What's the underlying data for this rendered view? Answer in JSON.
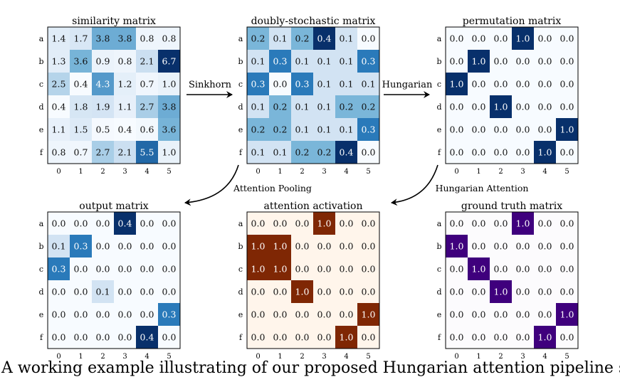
{
  "row_labels": [
    "a",
    "b",
    "c",
    "d",
    "e",
    "f"
  ],
  "col_labels": [
    "0",
    "1",
    "2",
    "3",
    "4",
    "5"
  ],
  "colors": {
    "blue_scale_low": "#f7fbff",
    "blue_scale_high": "#08306b",
    "orange_low": "#fff5eb",
    "orange_high": "#7f2704",
    "purple_low": "#fcfbfd",
    "purple_high": "#3f007d"
  },
  "matrices": [
    {
      "id": "similarity",
      "title": "similarity matrix",
      "scale": "blue",
      "values": [
        [
          "1.4",
          "1.7",
          "3.8",
          "3.8",
          "0.8",
          "0.8"
        ],
        [
          "1.3",
          "3.6",
          "0.9",
          "0.8",
          "2.1",
          "6.7"
        ],
        [
          "2.5",
          "0.4",
          "4.3",
          "1.2",
          "0.7",
          "1.0"
        ],
        [
          "0.4",
          "1.8",
          "1.9",
          "1.1",
          "2.7",
          "3.8"
        ],
        [
          "1.1",
          "1.5",
          "0.5",
          "0.4",
          "0.6",
          "3.6"
        ],
        [
          "0.8",
          "0.7",
          "2.7",
          "2.1",
          "5.5",
          "1.0"
        ]
      ]
    },
    {
      "id": "doubly-stochastic",
      "title": "doubly-stochastic matrix",
      "scale": "blue",
      "values": [
        [
          "0.2",
          "0.1",
          "0.2",
          "0.4",
          "0.1",
          "0.0"
        ],
        [
          "0.1",
          "0.3",
          "0.1",
          "0.1",
          "0.1",
          "0.3"
        ],
        [
          "0.3",
          "0.0",
          "0.3",
          "0.1",
          "0.1",
          "0.1"
        ],
        [
          "0.1",
          "0.2",
          "0.1",
          "0.1",
          "0.2",
          "0.2"
        ],
        [
          "0.2",
          "0.2",
          "0.1",
          "0.1",
          "0.1",
          "0.3"
        ],
        [
          "0.1",
          "0.1",
          "0.2",
          "0.2",
          "0.4",
          "0.0"
        ]
      ]
    },
    {
      "id": "permutation",
      "title": "permutation matrix",
      "scale": "blue",
      "values": [
        [
          "0.0",
          "0.0",
          "0.0",
          "1.0",
          "0.0",
          "0.0"
        ],
        [
          "0.0",
          "1.0",
          "0.0",
          "0.0",
          "0.0",
          "0.0"
        ],
        [
          "1.0",
          "0.0",
          "0.0",
          "0.0",
          "0.0",
          "0.0"
        ],
        [
          "0.0",
          "0.0",
          "1.0",
          "0.0",
          "0.0",
          "0.0"
        ],
        [
          "0.0",
          "0.0",
          "0.0",
          "0.0",
          "0.0",
          "1.0"
        ],
        [
          "0.0",
          "0.0",
          "0.0",
          "0.0",
          "1.0",
          "0.0"
        ]
      ]
    },
    {
      "id": "output",
      "title": "output matrix",
      "scale": "blue",
      "values": [
        [
          "0.0",
          "0.0",
          "0.0",
          "0.4",
          "0.0",
          "0.0"
        ],
        [
          "0.1",
          "0.3",
          "0.0",
          "0.0",
          "0.0",
          "0.0"
        ],
        [
          "0.3",
          "0.0",
          "0.0",
          "0.0",
          "0.0",
          "0.0"
        ],
        [
          "0.0",
          "0.0",
          "0.1",
          "0.0",
          "0.0",
          "0.0"
        ],
        [
          "0.0",
          "0.0",
          "0.0",
          "0.0",
          "0.0",
          "0.3"
        ],
        [
          "0.0",
          "0.0",
          "0.0",
          "0.0",
          "0.4",
          "0.0"
        ]
      ]
    },
    {
      "id": "attention-activation",
      "title": "attention activation",
      "scale": "orange",
      "values": [
        [
          "0.0",
          "0.0",
          "0.0",
          "1.0",
          "0.0",
          "0.0"
        ],
        [
          "1.0",
          "1.0",
          "0.0",
          "0.0",
          "0.0",
          "0.0"
        ],
        [
          "1.0",
          "1.0",
          "0.0",
          "0.0",
          "0.0",
          "0.0"
        ],
        [
          "0.0",
          "0.0",
          "1.0",
          "0.0",
          "0.0",
          "0.0"
        ],
        [
          "0.0",
          "0.0",
          "0.0",
          "0.0",
          "0.0",
          "1.0"
        ],
        [
          "0.0",
          "0.0",
          "0.0",
          "0.0",
          "1.0",
          "0.0"
        ]
      ]
    },
    {
      "id": "ground-truth",
      "title": "ground truth matrix",
      "scale": "purple",
      "values": [
        [
          "0.0",
          "0.0",
          "0.0",
          "1.0",
          "0.0",
          "0.0"
        ],
        [
          "1.0",
          "0.0",
          "0.0",
          "0.0",
          "0.0",
          "0.0"
        ],
        [
          "0.0",
          "1.0",
          "0.0",
          "0.0",
          "0.0",
          "0.0"
        ],
        [
          "0.0",
          "0.0",
          "1.0",
          "0.0",
          "0.0",
          "0.0"
        ],
        [
          "0.0",
          "0.0",
          "0.0",
          "0.0",
          "0.0",
          "1.0"
        ],
        [
          "0.0",
          "0.0",
          "0.0",
          "0.0",
          "1.0",
          "0.0"
        ]
      ]
    }
  ],
  "arrows": [
    {
      "id": "sinkhorn",
      "label": "Sinkhorn"
    },
    {
      "id": "hungarian",
      "label": "Hungarian"
    },
    {
      "id": "attention-pooling",
      "label": "Attention Pooling"
    },
    {
      "id": "hungarian-attention",
      "label": "Hungarian Attention"
    }
  ],
  "caption": "A working example illustrating of our proposed Hungarian attention pipeline sta"
}
